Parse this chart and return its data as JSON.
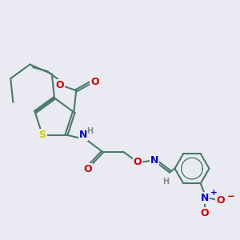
{
  "bg_color": "#eaeaf2",
  "bond_color": "#4a7a6a",
  "S_color": "#cccc00",
  "N_color": "#0000cc",
  "O_color": "#cc0000",
  "H_color": "#888888",
  "lw": 1.5,
  "fs": 8.5,
  "xlim": [
    0,
    3.0
  ],
  "ylim": [
    0,
    3.0
  ]
}
